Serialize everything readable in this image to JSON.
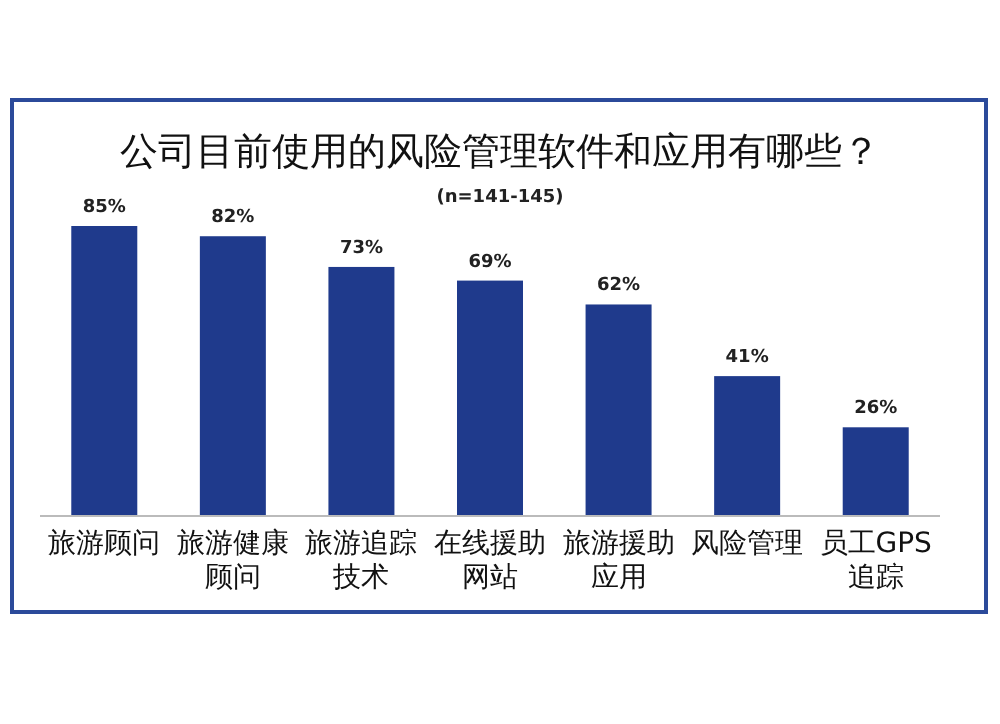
{
  "chart_data": {
    "type": "bar",
    "title": "公司目前使用的风险管理软件和应用有哪些？",
    "subtitle": "(n=141-145)",
    "categories": [
      "旅游顾问",
      "旅游健康顾问",
      "旅游追踪技术",
      "在线援助网站",
      "旅游援助应用",
      "风险管理",
      "员工GPS追踪"
    ],
    "values": [
      85,
      82,
      73,
      69,
      62,
      41,
      26
    ],
    "value_labels": [
      "85%",
      "82%",
      "73%",
      "69%",
      "62%",
      "41%",
      "26%"
    ],
    "color": "#1f3a8c",
    "grid": false,
    "legend": false
  }
}
